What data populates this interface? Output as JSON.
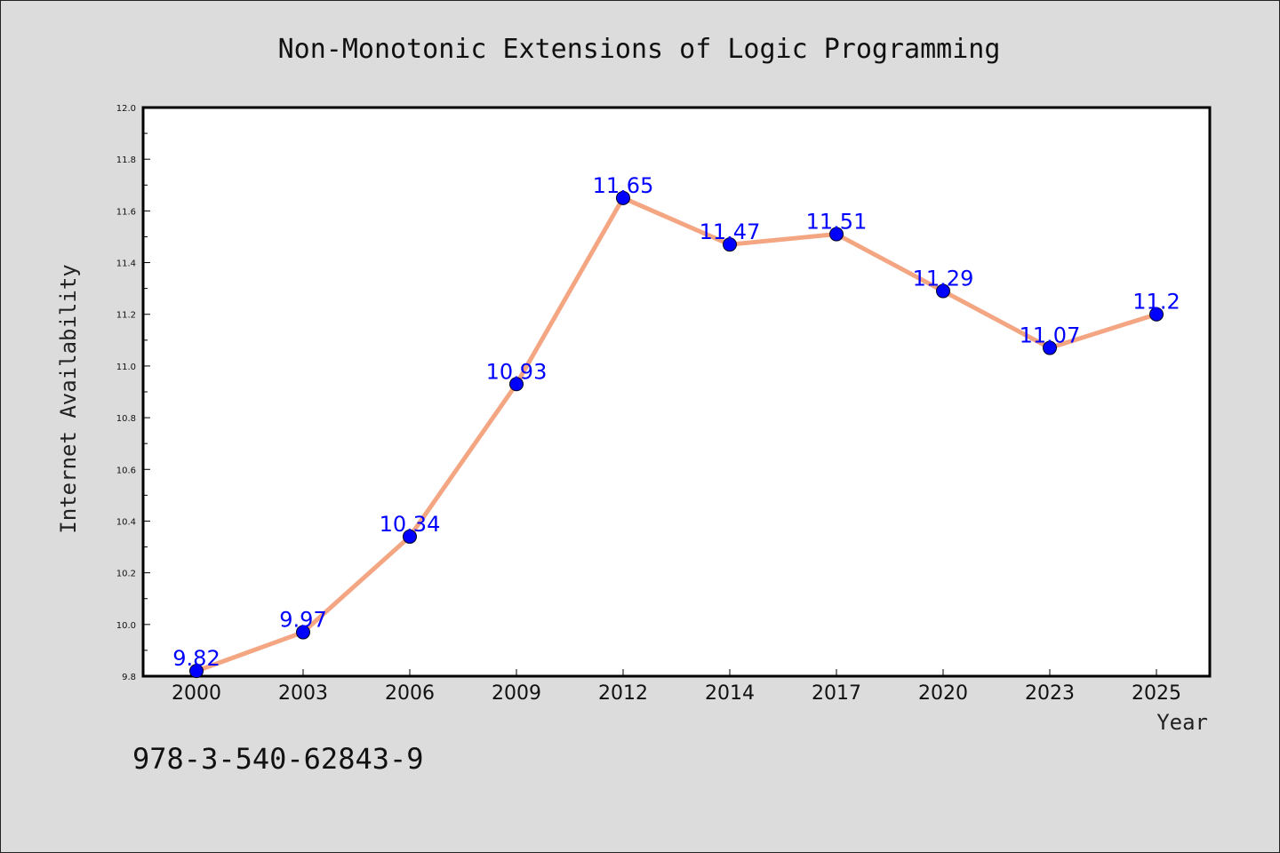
{
  "colors": {
    "background": "#dcdcdc",
    "plot_background": "#ffffff",
    "line": "#f4a582",
    "marker": "#0000ff",
    "data_label": "#0000ff"
  },
  "footnote": "978-3-540-62843-9",
  "chart_data": {
    "type": "line",
    "title": "Non-Monotonic Extensions of Logic Programming",
    "xlabel": "Year",
    "ylabel": "Internet Availability",
    "categories": [
      "2000",
      "2003",
      "2006",
      "2009",
      "2012",
      "2014",
      "2017",
      "2020",
      "2023",
      "2025"
    ],
    "series": [
      {
        "values": [
          9.82,
          9.97,
          10.34,
          10.93,
          11.65,
          11.47,
          11.51,
          11.29,
          11.07,
          11.2
        ],
        "data_labels": [
          "9.82",
          "9.97",
          "10.34",
          "10.93",
          "11.65",
          "11.47",
          "11.51",
          "11.29",
          "11.07",
          "11.2"
        ]
      }
    ],
    "ylim": [
      9.8,
      12.0
    ],
    "yticks": [
      "9.8",
      "10.0",
      "10.2",
      "10.4",
      "10.6",
      "10.8",
      "11.0",
      "11.2",
      "11.4",
      "11.6",
      "11.8",
      "12.0"
    ],
    "grid": false,
    "legend": "none"
  }
}
